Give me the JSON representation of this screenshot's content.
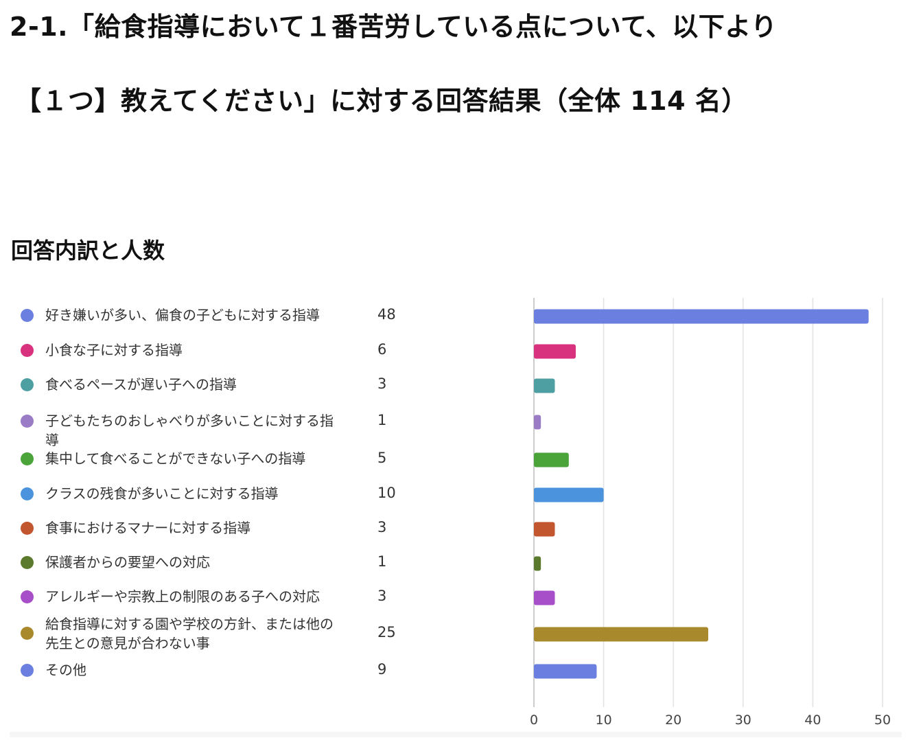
{
  "header": {
    "title_line1": "2-1.「給食指導において１番苦労している点について、以下より",
    "title_line2": "【１つ】教えてください」に対する回答結果（全体 114 名）",
    "subtitle": "回答内訳と人数"
  },
  "chart_data": {
    "type": "bar",
    "orientation": "horizontal",
    "categories": [
      "好き嫌いが多い、偏食の子どもに対する指導",
      "小食な子に対する指導",
      "食べるペースが遅い子への指導",
      "子どもたちのおしゃべりが多いことに対する指導",
      "集中して食べることができない子への指導",
      "クラスの残食が多いことに対する指導",
      "食事におけるマナーに対する指導",
      "保護者からの要望への対応",
      "アレルギーや宗教上の制限のある子への対応",
      "給食指導に対する園や学校の方針、または他の先生との意見が合わない事",
      "その他"
    ],
    "values": [
      48,
      6,
      3,
      1,
      5,
      10,
      3,
      1,
      3,
      25,
      9
    ],
    "display_values": [
      "48",
      "6",
      "3",
      "1",
      "5",
      "10",
      "3",
      "1",
      "3",
      "25",
      "9"
    ],
    "colors": [
      "#6a7fe0",
      "#d8327f",
      "#4e9fa1",
      "#9a7bc6",
      "#4aa43a",
      "#4b93dd",
      "#c1562f",
      "#5c7a2d",
      "#a74fc8",
      "#a88a2c",
      "#6a7fe0"
    ],
    "xlim": [
      0,
      50
    ],
    "x_ticks": [
      "0",
      "10",
      "20",
      "30",
      "40",
      "50"
    ],
    "grid": true,
    "legend_position": "left"
  }
}
